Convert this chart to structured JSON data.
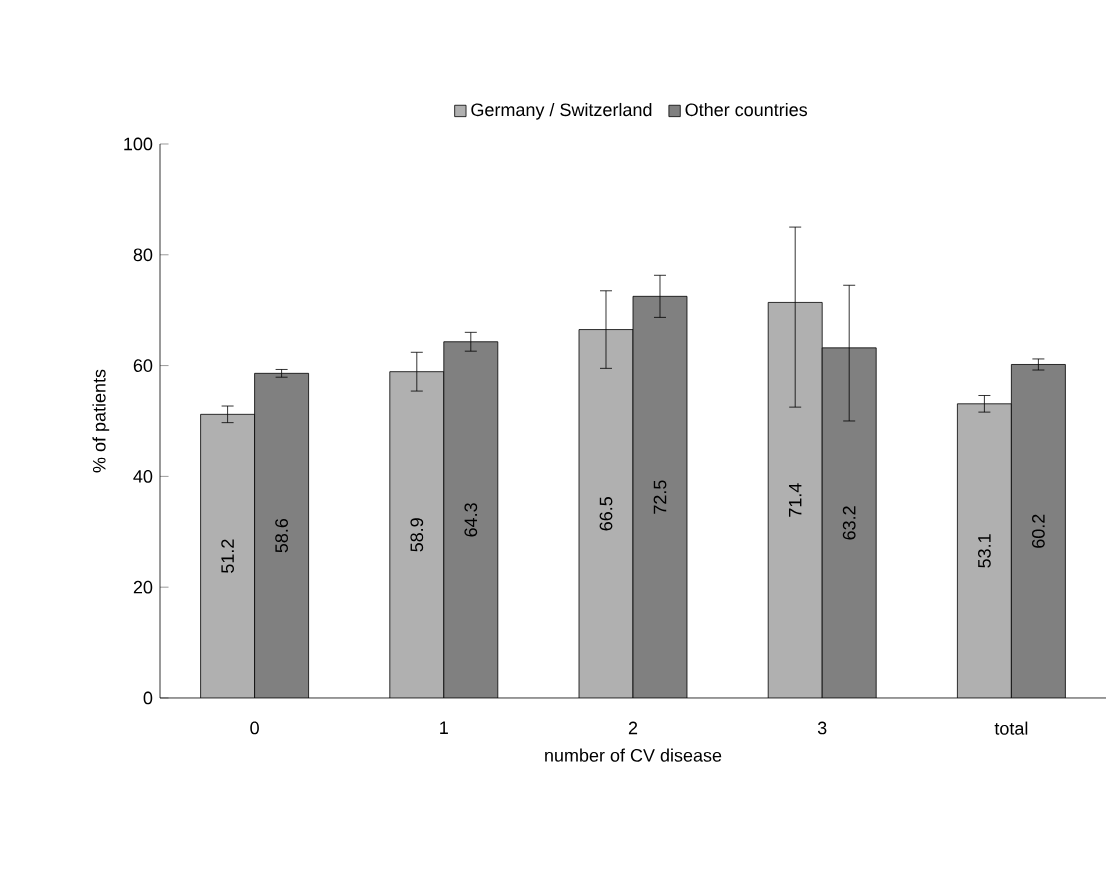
{
  "chart_data": {
    "type": "bar",
    "xlabel": "number of CV disease",
    "ylabel": "% of patients",
    "categories": [
      "0",
      "1",
      "2",
      "3",
      "total"
    ],
    "series": [
      {
        "name": "Germany / Switzerland",
        "color": "#b0b0b0",
        "values": [
          51.2,
          58.9,
          66.5,
          71.4,
          53.1
        ],
        "errors": [
          1.5,
          3.5,
          7,
          [
            52.5,
            85
          ],
          1.5
        ]
      },
      {
        "name": "Other countries",
        "color": "#808080",
        "values": [
          58.6,
          64.3,
          72.5,
          63.2,
          60.2
        ],
        "errors": [
          0.7,
          1.7,
          3.8,
          [
            50,
            74.5
          ],
          1
        ]
      }
    ],
    "ylim": [
      0,
      100
    ],
    "yticks": [
      0,
      20,
      40,
      60,
      80,
      100
    ],
    "data_labels": true,
    "legend": "top",
    "grid": false
  }
}
